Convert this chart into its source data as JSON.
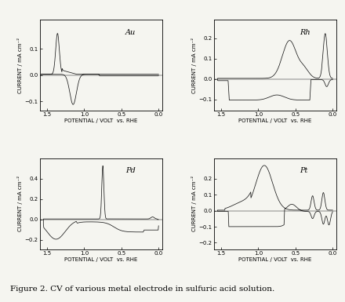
{
  "figure_title": "Figure 2. CV of various metal electrode in sulfuric acid solution.",
  "panels": [
    {
      "label": "Au",
      "xlim": [
        1.6,
        -0.05
      ],
      "ylim": [
        -0.135,
        0.21
      ],
      "yticks": [
        -0.1,
        0,
        0.1
      ],
      "xticks": [
        1.5,
        1.0,
        0.5,
        0
      ],
      "xlabel": "POTENTIAL / VOLT  vs. RHE",
      "ylabel": "CURRENT / mA cm⁻²"
    },
    {
      "label": "Rh",
      "xlim": [
        1.6,
        -0.05
      ],
      "ylim": [
        -0.155,
        0.29
      ],
      "yticks": [
        -0.1,
        0,
        0.1,
        0.2
      ],
      "xticks": [
        1.5,
        1.0,
        0.5,
        0
      ],
      "xlabel": "POTENTIAL / VOLT  vs. RHE",
      "ylabel": "CURRENT / mA cm⁻²"
    },
    {
      "label": "Pd",
      "xlim": [
        1.6,
        -0.05
      ],
      "ylim": [
        -0.29,
        0.6
      ],
      "yticks": [
        -0.2,
        0,
        0.2,
        0.4
      ],
      "xticks": [
        1.5,
        1.0,
        0.5,
        0
      ],
      "xlabel": "POTENTIAL / VOLT  vs. RHE",
      "ylabel": "CURRENT / mA cm⁻²"
    },
    {
      "label": "Pt",
      "xlim": [
        1.6,
        -0.05
      ],
      "ylim": [
        -0.24,
        0.33
      ],
      "yticks": [
        -0.2,
        -0.1,
        0,
        0.1,
        0.2
      ],
      "xticks": [
        1.5,
        1.0,
        0.5,
        0
      ],
      "xlabel": "POTENTIAL / VOLT  vs. RHE",
      "ylabel": "CURRENT / mA cm⁻²"
    }
  ],
  "line_color": "#1a1a1a",
  "bg_color": "#f5f5f0",
  "font_size_label": 5.0,
  "font_size_tick": 5.0,
  "font_size_panel_label": 7,
  "font_size_caption": 7.5
}
